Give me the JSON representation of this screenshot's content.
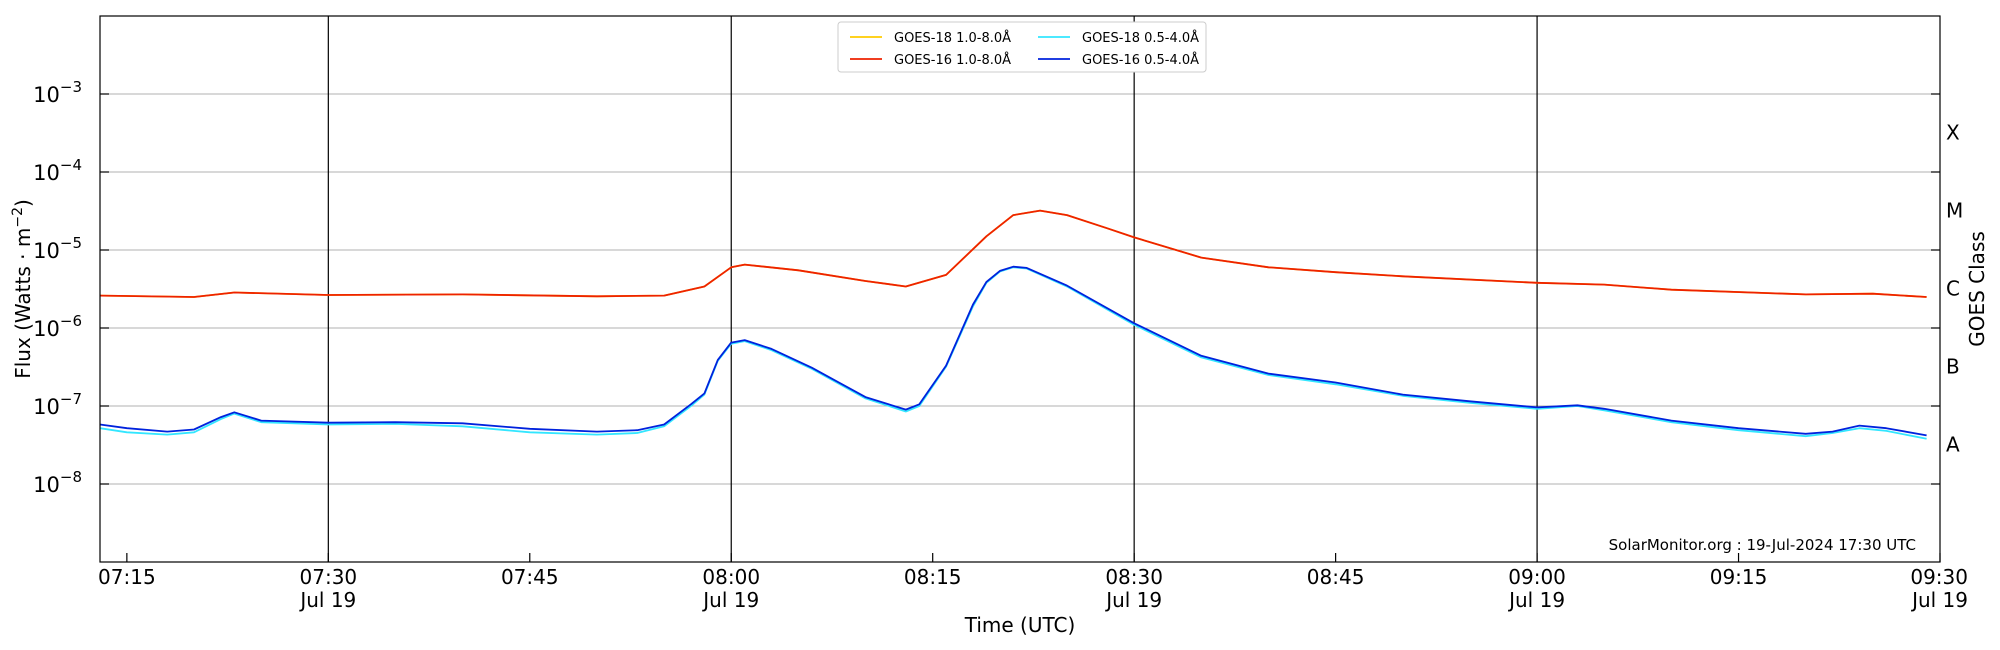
{
  "chart_data": {
    "type": "line",
    "xlabel": "Time (UTC)",
    "ylabel_main": "Flux (Watts · m",
    "ylabel_sup": "−2",
    "ylabel_close": ")",
    "right_label": "GOES Class",
    "y_scale": "log",
    "xlim": [
      "2024-07-19 07:13",
      "2024-07-19 09:30"
    ],
    "ylim": [
      1e-09,
      0.01
    ],
    "y_ticks": [
      {
        "value": 1e-08,
        "base": "10",
        "exp": "−8"
      },
      {
        "value": 1e-07,
        "base": "10",
        "exp": "−7"
      },
      {
        "value": 1e-06,
        "base": "10",
        "exp": "−6"
      },
      {
        "value": 1e-05,
        "base": "10",
        "exp": "−5"
      },
      {
        "value": 0.0001,
        "base": "10",
        "exp": "−4"
      },
      {
        "value": 0.001,
        "base": "10",
        "exp": "−3"
      }
    ],
    "x_ticks": [
      {
        "time": "07:15",
        "label": "07:15",
        "date": ""
      },
      {
        "time": "07:30",
        "label": "07:30",
        "date": "Jul 19"
      },
      {
        "time": "07:45",
        "label": "07:45",
        "date": ""
      },
      {
        "time": "08:00",
        "label": "08:00",
        "date": "Jul 19"
      },
      {
        "time": "08:15",
        "label": "08:15",
        "date": ""
      },
      {
        "time": "08:30",
        "label": "08:30",
        "date": "Jul 19"
      },
      {
        "time": "08:45",
        "label": "08:45",
        "date": ""
      },
      {
        "time": "09:00",
        "label": "09:00",
        "date": "Jul 19"
      },
      {
        "time": "09:15",
        "label": "09:15",
        "date": ""
      },
      {
        "time": "09:30",
        "label": "09:30",
        "date": "Jul 19"
      }
    ],
    "vlines": [
      "07:30",
      "08:00",
      "08:30",
      "09:00"
    ],
    "goes_classes": [
      {
        "label": "A",
        "value": 3.2e-08
      },
      {
        "label": "B",
        "value": 3.2e-07
      },
      {
        "label": "C",
        "value": 3.2e-06
      },
      {
        "label": "M",
        "value": 3.2e-05
      },
      {
        "label": "X",
        "value": 0.00032
      }
    ],
    "grid": true,
    "legend_position": "top-center",
    "annotation": "SolarMonitor.org : 19-Jul-2024 17:30 UTC",
    "series": [
      {
        "name": "GOES-18 1.0-8.0Å",
        "color": "#ffcc00",
        "points": [
          [
            "07:13",
            2.6e-06
          ],
          [
            "07:20",
            2.5e-06
          ],
          [
            "07:23",
            2.85e-06
          ],
          [
            "07:30",
            2.65e-06
          ],
          [
            "07:40",
            2.7e-06
          ],
          [
            "07:50",
            2.55e-06
          ],
          [
            "07:55",
            2.6e-06
          ],
          [
            "07:58",
            3.4e-06
          ],
          [
            "08:00",
            6e-06
          ],
          [
            "08:01",
            6.5e-06
          ],
          [
            "08:05",
            5.5e-06
          ],
          [
            "08:10",
            4e-06
          ],
          [
            "08:13",
            3.4e-06
          ],
          [
            "08:16",
            4.8e-06
          ],
          [
            "08:19",
            1.5e-05
          ],
          [
            "08:21",
            2.8e-05
          ],
          [
            "08:23",
            3.2e-05
          ],
          [
            "08:25",
            2.8e-05
          ],
          [
            "08:28",
            1.9e-05
          ],
          [
            "08:30",
            1.45e-05
          ],
          [
            "08:35",
            8e-06
          ],
          [
            "08:40",
            6e-06
          ],
          [
            "08:45",
            5.2e-06
          ],
          [
            "08:50",
            4.6e-06
          ],
          [
            "09:00",
            3.8e-06
          ],
          [
            "09:05",
            3.6e-06
          ],
          [
            "09:10",
            3.1e-06
          ],
          [
            "09:20",
            2.7e-06
          ],
          [
            "09:25",
            2.75e-06
          ],
          [
            "09:29",
            2.5e-06
          ]
        ]
      },
      {
        "name": "GOES-18 0.5-4.0Å",
        "color": "#33e6ff",
        "points": [
          [
            "07:13",
            5.2e-08
          ],
          [
            "07:15",
            4.6e-08
          ],
          [
            "07:18",
            4.3e-08
          ],
          [
            "07:20",
            4.6e-08
          ],
          [
            "07:22",
            6.8e-08
          ],
          [
            "07:23",
            8e-08
          ],
          [
            "07:25",
            6.2e-08
          ],
          [
            "07:30",
            5.8e-08
          ],
          [
            "07:35",
            5.9e-08
          ],
          [
            "07:40",
            5.5e-08
          ],
          [
            "07:45",
            4.6e-08
          ],
          [
            "07:50",
            4.3e-08
          ],
          [
            "07:53",
            4.5e-08
          ],
          [
            "07:55",
            5.5e-08
          ],
          [
            "07:57",
            1e-07
          ],
          [
            "07:58",
            1.4e-07
          ],
          [
            "07:59",
            3.8e-07
          ],
          [
            "08:00",
            6.3e-07
          ],
          [
            "08:01",
            6.8e-07
          ],
          [
            "08:03",
            5.2e-07
          ],
          [
            "08:06",
            3e-07
          ],
          [
            "08:10",
            1.25e-07
          ],
          [
            "08:13",
            8.5e-08
          ],
          [
            "08:14",
            1e-07
          ],
          [
            "08:16",
            3.2e-07
          ],
          [
            "08:18",
            1.9e-06
          ],
          [
            "08:19",
            3.8e-06
          ],
          [
            "08:20",
            5.3e-06
          ],
          [
            "08:21",
            6e-06
          ],
          [
            "08:22",
            5.8e-06
          ],
          [
            "08:25",
            3.4e-06
          ],
          [
            "08:30",
            1.1e-06
          ],
          [
            "08:35",
            4.2e-07
          ],
          [
            "08:40",
            2.5e-07
          ],
          [
            "08:45",
            1.9e-07
          ],
          [
            "08:50",
            1.35e-07
          ],
          [
            "08:55",
            1.1e-07
          ],
          [
            "09:00",
            9.2e-08
          ],
          [
            "09:03",
            1e-07
          ],
          [
            "09:05",
            8.8e-08
          ],
          [
            "09:10",
            6.2e-08
          ],
          [
            "09:15",
            4.9e-08
          ],
          [
            "09:20",
            4.1e-08
          ],
          [
            "09:22",
            4.5e-08
          ],
          [
            "09:24",
            5.2e-08
          ],
          [
            "09:26",
            4.8e-08
          ],
          [
            "09:29",
            3.8e-08
          ]
        ]
      },
      {
        "name": "GOES-16 1.0-8.0Å",
        "color": "#ee2200",
        "points": [
          [
            "07:13",
            2.6e-06
          ],
          [
            "07:20",
            2.5e-06
          ],
          [
            "07:23",
            2.85e-06
          ],
          [
            "07:30",
            2.65e-06
          ],
          [
            "07:40",
            2.7e-06
          ],
          [
            "07:50",
            2.55e-06
          ],
          [
            "07:55",
            2.6e-06
          ],
          [
            "07:58",
            3.4e-06
          ],
          [
            "08:00",
            6e-06
          ],
          [
            "08:01",
            6.5e-06
          ],
          [
            "08:05",
            5.5e-06
          ],
          [
            "08:10",
            4e-06
          ],
          [
            "08:13",
            3.4e-06
          ],
          [
            "08:16",
            4.8e-06
          ],
          [
            "08:19",
            1.5e-05
          ],
          [
            "08:21",
            2.8e-05
          ],
          [
            "08:23",
            3.2e-05
          ],
          [
            "08:25",
            2.8e-05
          ],
          [
            "08:28",
            1.9e-05
          ],
          [
            "08:30",
            1.45e-05
          ],
          [
            "08:35",
            8e-06
          ],
          [
            "08:40",
            6e-06
          ],
          [
            "08:45",
            5.2e-06
          ],
          [
            "08:50",
            4.6e-06
          ],
          [
            "09:00",
            3.8e-06
          ],
          [
            "09:05",
            3.6e-06
          ],
          [
            "09:10",
            3.1e-06
          ],
          [
            "09:20",
            2.7e-06
          ],
          [
            "09:25",
            2.75e-06
          ],
          [
            "09:29",
            2.5e-06
          ]
        ]
      },
      {
        "name": "GOES-16 0.5-4.0Å",
        "color": "#0022dd",
        "points": [
          [
            "07:13",
            5.8e-08
          ],
          [
            "07:15",
            5.2e-08
          ],
          [
            "07:18",
            4.7e-08
          ],
          [
            "07:20",
            5e-08
          ],
          [
            "07:22",
            7.2e-08
          ],
          [
            "07:23",
            8.3e-08
          ],
          [
            "07:25",
            6.5e-08
          ],
          [
            "07:30",
            6.1e-08
          ],
          [
            "07:35",
            6.2e-08
          ],
          [
            "07:40",
            6e-08
          ],
          [
            "07:45",
            5.1e-08
          ],
          [
            "07:50",
            4.7e-08
          ],
          [
            "07:53",
            4.9e-08
          ],
          [
            "07:55",
            5.8e-08
          ],
          [
            "07:57",
            1.05e-07
          ],
          [
            "07:58",
            1.45e-07
          ],
          [
            "07:59",
            3.9e-07
          ],
          [
            "08:00",
            6.5e-07
          ],
          [
            "08:01",
            7e-07
          ],
          [
            "08:03",
            5.4e-07
          ],
          [
            "08:06",
            3.1e-07
          ],
          [
            "08:10",
            1.3e-07
          ],
          [
            "08:13",
            9e-08
          ],
          [
            "08:14",
            1.05e-07
          ],
          [
            "08:16",
            3.3e-07
          ],
          [
            "08:18",
            2e-06
          ],
          [
            "08:19",
            3.9e-06
          ],
          [
            "08:20",
            5.4e-06
          ],
          [
            "08:21",
            6.1e-06
          ],
          [
            "08:22",
            5.9e-06
          ],
          [
            "08:25",
            3.5e-06
          ],
          [
            "08:30",
            1.15e-06
          ],
          [
            "08:35",
            4.4e-07
          ],
          [
            "08:40",
            2.6e-07
          ],
          [
            "08:45",
            2e-07
          ],
          [
            "08:50",
            1.4e-07
          ],
          [
            "08:55",
            1.15e-07
          ],
          [
            "09:00",
            9.6e-08
          ],
          [
            "09:03",
            1.02e-07
          ],
          [
            "09:05",
            9.2e-08
          ],
          [
            "09:10",
            6.5e-08
          ],
          [
            "09:15",
            5.2e-08
          ],
          [
            "09:20",
            4.4e-08
          ],
          [
            "09:22",
            4.7e-08
          ],
          [
            "09:24",
            5.6e-08
          ],
          [
            "09:26",
            5.2e-08
          ],
          [
            "09:29",
            4.2e-08
          ]
        ]
      }
    ]
  }
}
